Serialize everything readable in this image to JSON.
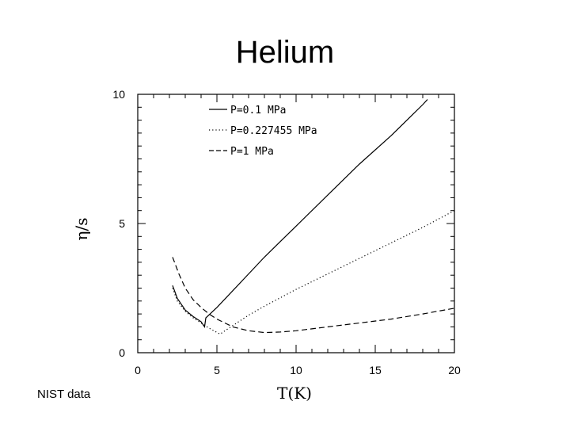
{
  "slide": {
    "title": "Helium",
    "footnote": "NIST data"
  },
  "chart_data": {
    "type": "line",
    "xlabel": "T(K)",
    "ylabel": "η/s",
    "xlim": [
      0,
      20
    ],
    "ylim": [
      0,
      10
    ],
    "x_ticks": [
      0,
      5,
      10,
      15,
      20
    ],
    "y_ticks": [
      0,
      5,
      10
    ],
    "grid": false,
    "legend_position": "top-left",
    "series": [
      {
        "name": "P=0.1 MPa",
        "style": "solid",
        "points": [
          [
            2.2,
            2.6
          ],
          [
            2.5,
            2.1
          ],
          [
            3.0,
            1.65
          ],
          [
            3.5,
            1.4
          ],
          [
            4.0,
            1.2
          ],
          [
            4.22,
            1.0
          ],
          [
            4.3,
            1.35
          ],
          [
            5,
            1.75
          ],
          [
            6,
            2.4
          ],
          [
            7,
            3.05
          ],
          [
            8,
            3.7
          ],
          [
            9,
            4.3
          ],
          [
            10,
            4.9
          ],
          [
            12,
            6.1
          ],
          [
            14,
            7.3
          ],
          [
            16,
            8.4
          ],
          [
            18,
            9.6
          ],
          [
            18.3,
            9.8
          ]
        ]
      },
      {
        "name": "P=0.227455 MPa",
        "style": "dotted",
        "points": [
          [
            2.2,
            2.5
          ],
          [
            2.5,
            2.0
          ],
          [
            3.0,
            1.6
          ],
          [
            3.5,
            1.35
          ],
          [
            4.0,
            1.15
          ],
          [
            4.5,
            0.95
          ],
          [
            5.2,
            0.72
          ],
          [
            6,
            1.05
          ],
          [
            7,
            1.45
          ],
          [
            8,
            1.8
          ],
          [
            10,
            2.45
          ],
          [
            12,
            3.05
          ],
          [
            14,
            3.65
          ],
          [
            16,
            4.25
          ],
          [
            18,
            4.85
          ],
          [
            20,
            5.5
          ]
        ]
      },
      {
        "name": "P=1 MPa",
        "style": "dashed",
        "points": [
          [
            2.2,
            3.7
          ],
          [
            2.6,
            3.05
          ],
          [
            3.0,
            2.5
          ],
          [
            3.5,
            2.05
          ],
          [
            4.0,
            1.75
          ],
          [
            4.5,
            1.5
          ],
          [
            5,
            1.3
          ],
          [
            6,
            1.0
          ],
          [
            7,
            0.85
          ],
          [
            8,
            0.78
          ],
          [
            9,
            0.8
          ],
          [
            10,
            0.85
          ],
          [
            12,
            1.0
          ],
          [
            14,
            1.15
          ],
          [
            16,
            1.3
          ],
          [
            18,
            1.5
          ],
          [
            20,
            1.72
          ]
        ]
      }
    ]
  }
}
